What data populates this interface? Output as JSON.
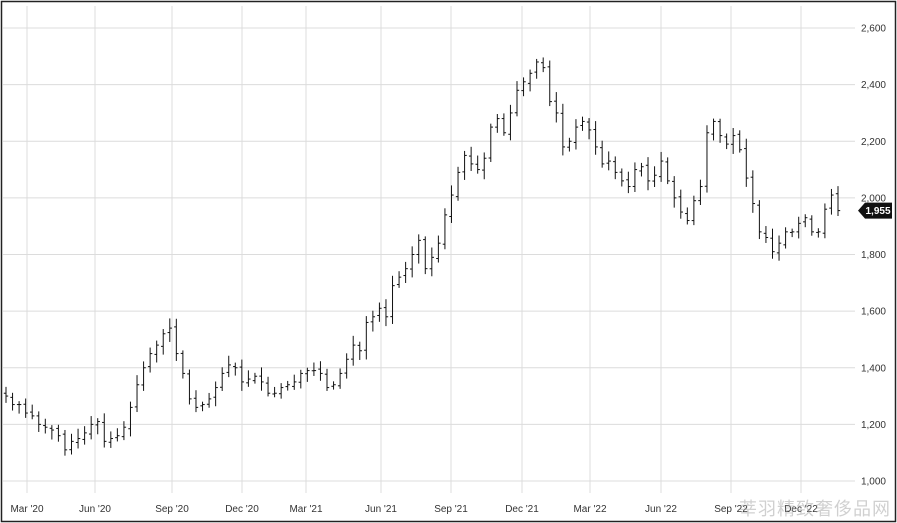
{
  "chart_data": {
    "type": "ohlc",
    "title": "",
    "xlabel": "",
    "ylabel": "",
    "x_ticks": [
      "Mar '20",
      "Jun '20",
      "Sep '20",
      "Dec '20",
      "Mar '21",
      "Jun '21",
      "Sep '21",
      "Dec '21",
      "Mar '22",
      "Jun '22",
      "Sep '22",
      "Dec '22"
    ],
    "y_ticks": [
      "1,000",
      "1,200",
      "1,400",
      "1,600",
      "1,800",
      "2,000",
      "2,200",
      "2,400",
      "2,600"
    ],
    "ylim": [
      1000,
      2600
    ],
    "grid": true,
    "last_price": {
      "label": "1,955",
      "value": 1955
    },
    "closes": [
      1300,
      1270,
      1270,
      1240,
      1230,
      1200,
      1190,
      1180,
      1160,
      1110,
      1140,
      1150,
      1170,
      1200,
      1210,
      1140,
      1150,
      1160,
      1190,
      1260,
      1340,
      1400,
      1450,
      1480,
      1520,
      1540,
      1450,
      1380,
      1290,
      1260,
      1270,
      1290,
      1330,
      1380,
      1410,
      1400,
      1350,
      1360,
      1370,
      1350,
      1310,
      1310,
      1330,
      1340,
      1350,
      1380,
      1390,
      1390,
      1380,
      1330,
      1340,
      1380,
      1430,
      1480,
      1460,
      1560,
      1580,
      1610,
      1580,
      1690,
      1720,
      1750,
      1800,
      1850,
      1750,
      1790,
      1840,
      1940,
      2010,
      2090,
      2150,
      2120,
      2100,
      2140,
      2250,
      2280,
      2230,
      2300,
      2380,
      2410,
      2440,
      2480,
      2460,
      2340,
      2300,
      2180,
      2200,
      2250,
      2270,
      2240,
      2180,
      2120,
      2130,
      2090,
      2060,
      2040,
      2100,
      2110,
      2060,
      2080,
      2130,
      2060,
      2000,
      1950,
      1920,
      1990,
      2040,
      2230,
      2270,
      2220,
      2190,
      2220,
      2170,
      2070,
      1980,
      1880,
      1860,
      1810,
      1840,
      1880,
      1880,
      1910,
      1930,
      1880,
      1880,
      1960,
      2010,
      1955
    ]
  }
}
